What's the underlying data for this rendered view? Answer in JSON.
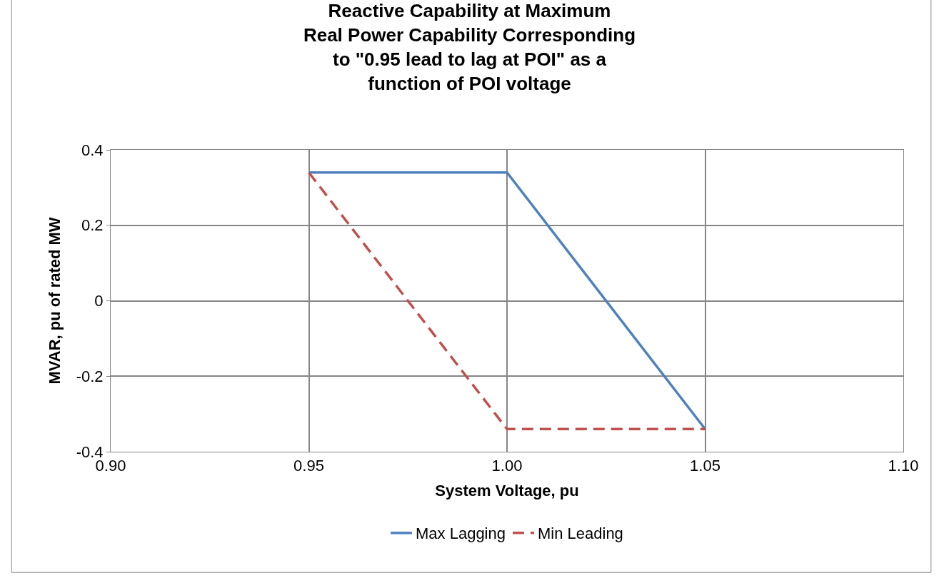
{
  "chart_data": {
    "type": "line",
    "title": "Reactive Capability at Maximum\nReal Power Capability Corresponding\nto \"0.95 lead to lag at POI\" as a\nfunction of POI voltage",
    "xlabel": "System Voltage, pu",
    "ylabel": "MVAR, pu of rated MW",
    "x": [
      0.95,
      1.0,
      1.05
    ],
    "series": [
      {
        "name": "Max Lagging",
        "color": "#4f81bd",
        "values": [
          0.34,
          0.34,
          -0.34
        ],
        "line_style": "solid"
      },
      {
        "name": "Min Leading",
        "color": "#c0504d",
        "values": [
          0.34,
          -0.34,
          -0.34
        ],
        "line_style": "dashed"
      }
    ],
    "xlim": [
      0.9,
      1.1
    ],
    "xticks": [
      {
        "value": 0.9,
        "label": "0.90"
      },
      {
        "value": 0.95,
        "label": "0.95"
      },
      {
        "value": 1.0,
        "label": "1.00"
      },
      {
        "value": 1.05,
        "label": "1.05"
      },
      {
        "value": 1.1,
        "label": "1.10"
      }
    ],
    "ylim": [
      -0.4,
      0.4
    ],
    "yticks": [
      -0.4,
      -0.2,
      0,
      0.2,
      0.4
    ],
    "grid": true,
    "legend": "bottom",
    "marker": "none"
  }
}
